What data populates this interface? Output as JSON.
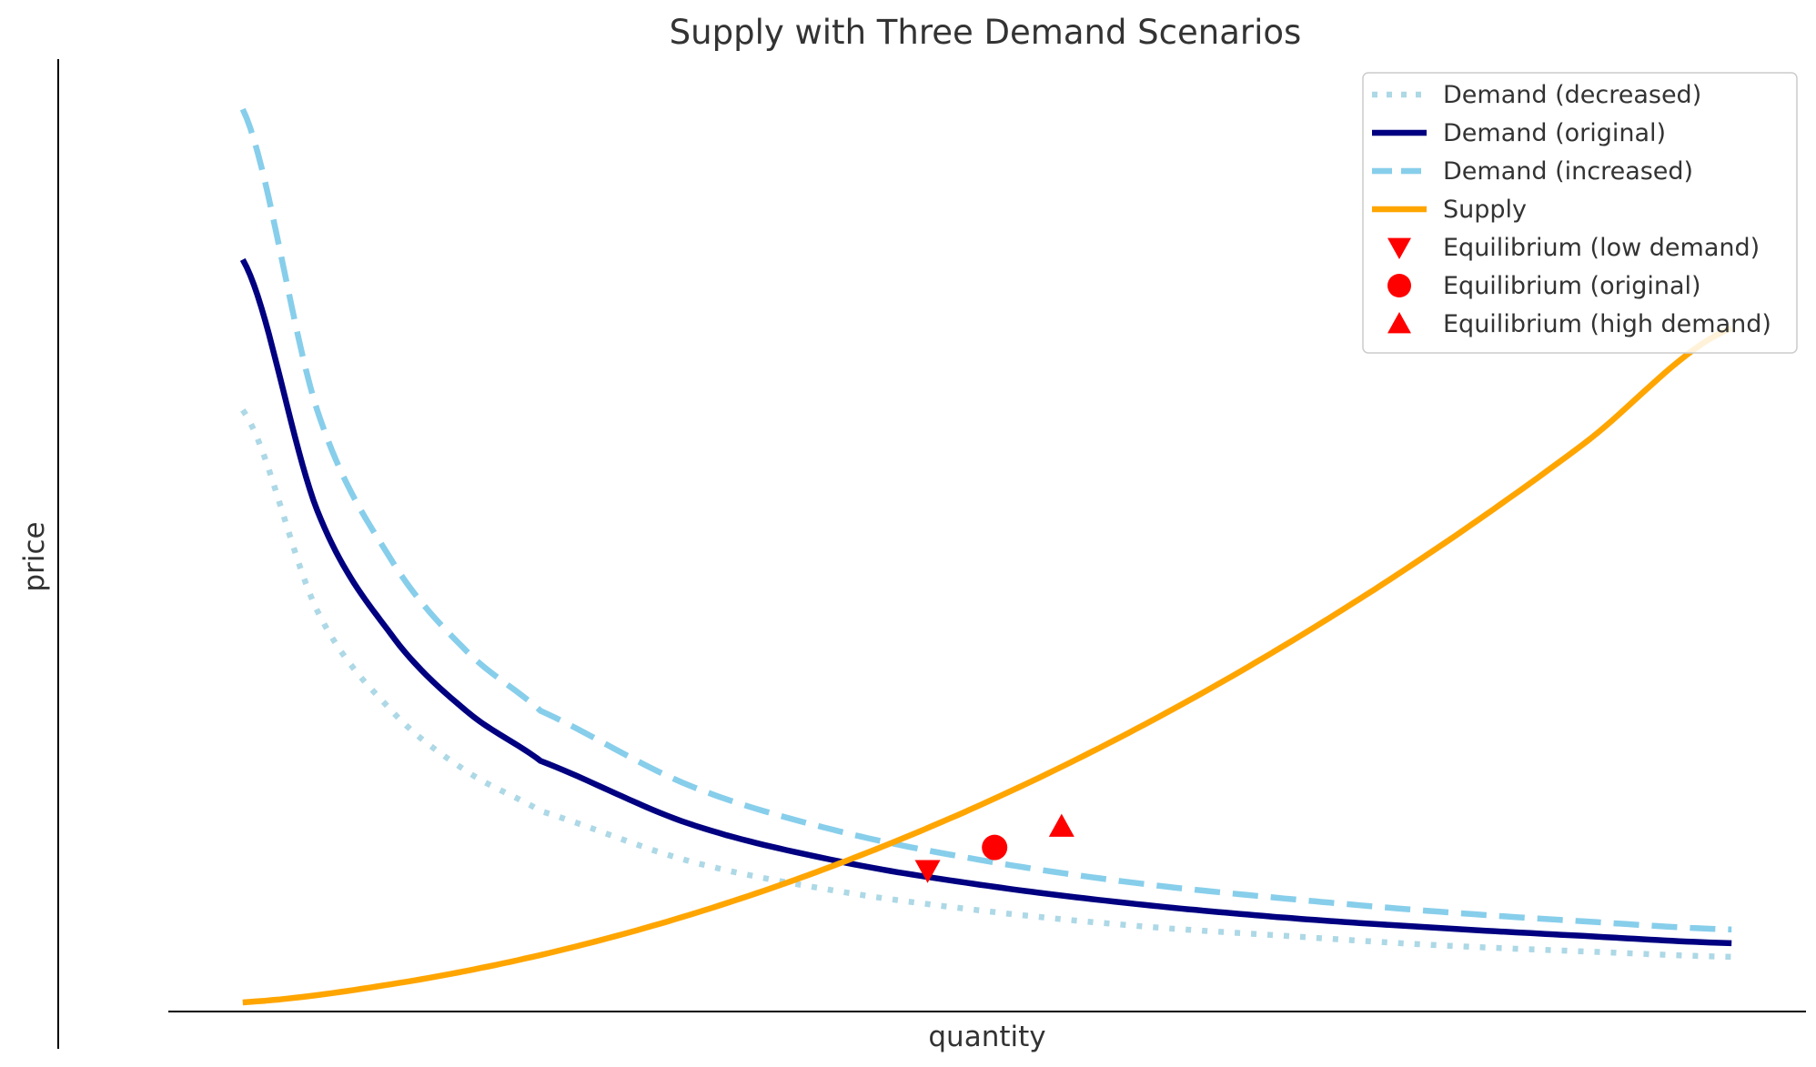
{
  "chart_data": {
    "type": "line",
    "title": "Supply with Three Demand Scenarios",
    "xlabel": "quantity",
    "ylabel": "price",
    "xlim": [
      0.5,
      11.5
    ],
    "ylim": [
      0,
      10.6
    ],
    "ticks_shown": false,
    "grid": false,
    "legend_position": "top-right",
    "series": [
      {
        "name": "Demand (decreased)",
        "kind": "line",
        "style": "dotted",
        "color": "#add8e6",
        "x": [
          1,
          1.5,
          2,
          2.5,
          3,
          4,
          5,
          6,
          7,
          8,
          9,
          10,
          11
        ],
        "y": [
          6.6,
          4.4,
          3.3,
          2.64,
          2.2,
          1.65,
          1.32,
          1.1,
          0.94,
          0.83,
          0.73,
          0.66,
          0.6
        ]
      },
      {
        "name": "Demand (original)",
        "kind": "line",
        "style": "solid",
        "color": "#000080",
        "x": [
          1,
          1.5,
          2,
          2.5,
          3,
          4,
          5,
          6,
          7,
          8,
          9,
          10,
          11
        ],
        "y": [
          8.25,
          5.5,
          4.13,
          3.3,
          2.75,
          2.06,
          1.65,
          1.38,
          1.18,
          1.03,
          0.92,
          0.83,
          0.75
        ]
      },
      {
        "name": "Demand (increased)",
        "kind": "line",
        "style": "dashed",
        "color": "#87ceeb",
        "x": [
          1,
          1.5,
          2,
          2.5,
          3,
          4,
          5,
          6,
          7,
          8,
          9,
          10,
          11
        ],
        "y": [
          9.9,
          6.6,
          4.95,
          3.96,
          3.3,
          2.48,
          1.98,
          1.65,
          1.41,
          1.24,
          1.1,
          0.99,
          0.9
        ]
      },
      {
        "name": "Supply",
        "kind": "line",
        "style": "solid",
        "color": "#ffa500",
        "x": [
          1,
          2,
          3,
          4,
          5,
          6,
          7,
          8,
          9,
          10,
          11
        ],
        "y": [
          0.1,
          0.3,
          0.62,
          1.06,
          1.62,
          2.3,
          3.1,
          4.02,
          5.06,
          6.22,
          7.5
        ]
      },
      {
        "name": "Equilibrium (low demand)",
        "kind": "marker",
        "marker": "triangle-down",
        "color": "#ff0000",
        "x": [
          5.6
        ],
        "y": [
          1.55
        ]
      },
      {
        "name": "Equilibrium (original)",
        "kind": "marker",
        "marker": "circle",
        "color": "#ff0000",
        "x": [
          6.05
        ],
        "y": [
          1.8
        ]
      },
      {
        "name": "Equilibrium (high demand)",
        "kind": "marker",
        "marker": "triangle-up",
        "color": "#ff0000",
        "x": [
          6.5
        ],
        "y": [
          2.03
        ]
      }
    ]
  }
}
